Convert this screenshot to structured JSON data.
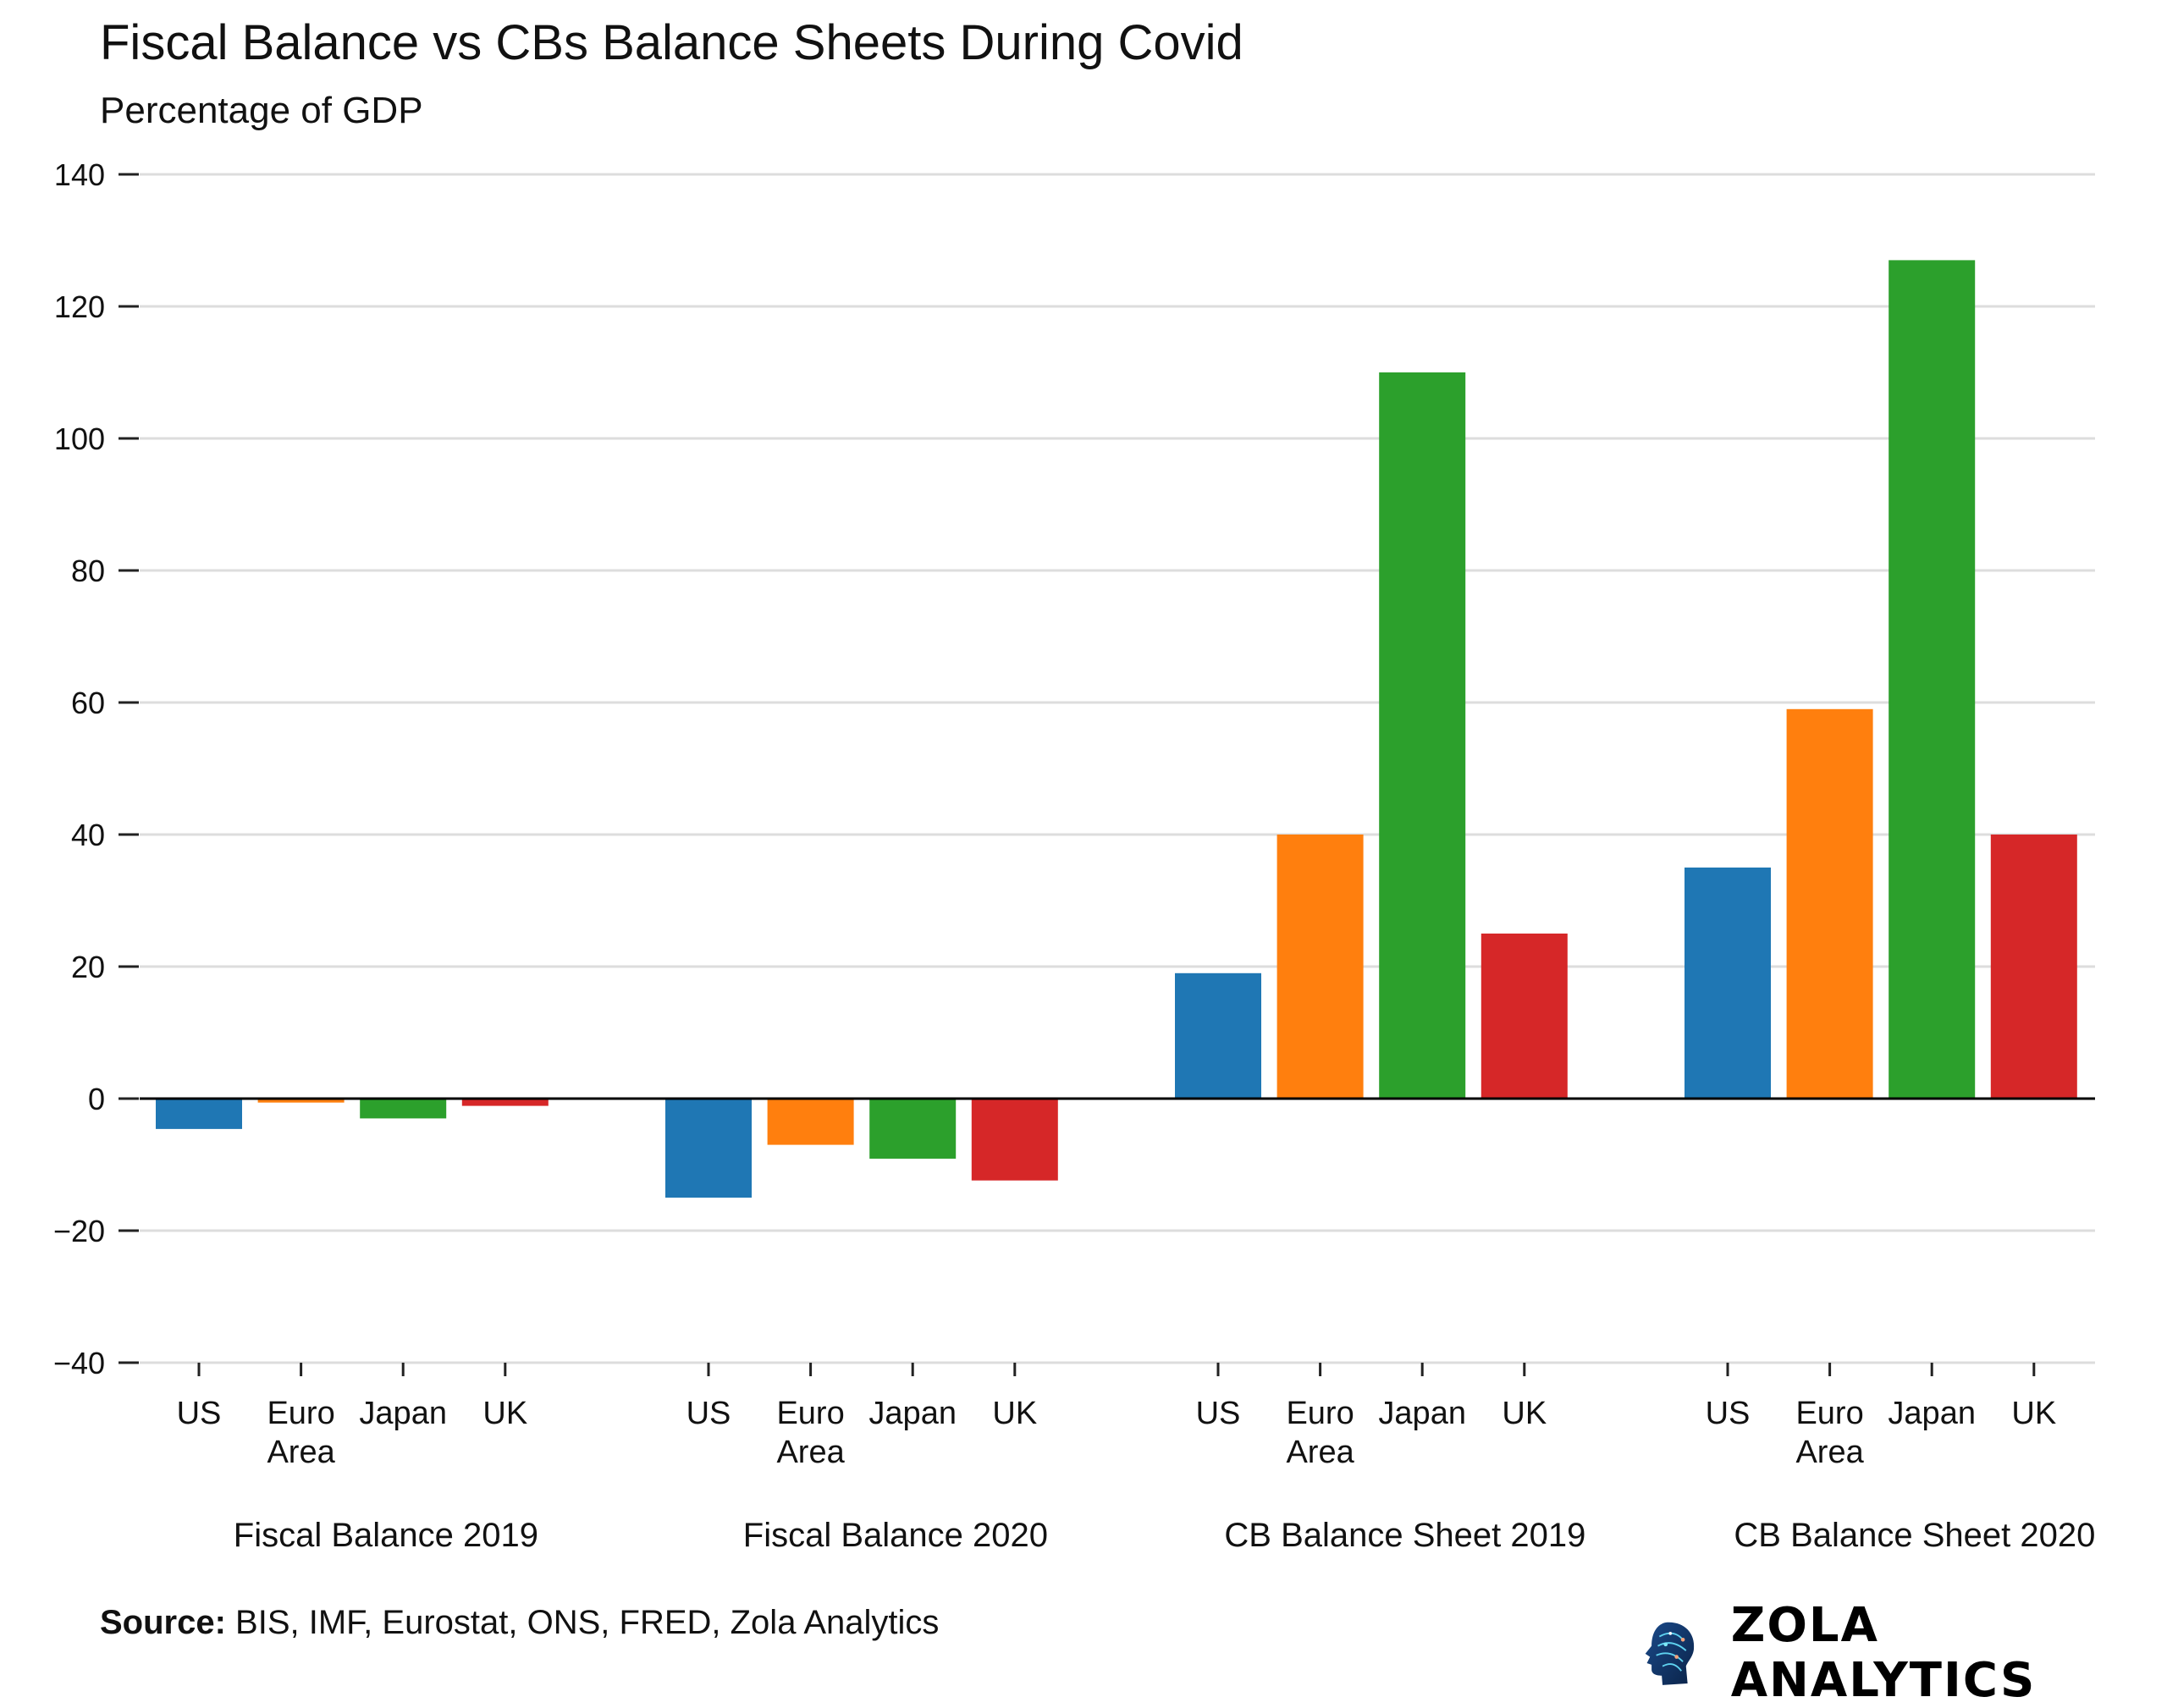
{
  "chart_data": {
    "type": "bar",
    "title": "Fiscal Balance vs CBs Balance Sheets During Covid",
    "subtitle": "Percentage of GDP",
    "ylabel": "",
    "xlabel": "",
    "ylim": [
      -40,
      140
    ],
    "yticks": [
      140,
      120,
      100,
      80,
      60,
      40,
      20,
      0,
      -20,
      -40
    ],
    "ytick_labels": [
      "140",
      "120",
      "100",
      "80",
      "60",
      "40",
      "20",
      "0",
      "−20",
      "−40"
    ],
    "grid": true,
    "categories": [
      "US",
      "Euro Area",
      "Japan",
      "UK"
    ],
    "category_colors": [
      "#1f77b4",
      "#ff7f0e",
      "#2ca02c",
      "#d62728"
    ],
    "groups": [
      {
        "label": "Fiscal Balance 2019",
        "values": [
          -4.6,
          -0.6,
          -3.0,
          -1.1
        ]
      },
      {
        "label": "Fiscal Balance 2020",
        "values": [
          -15,
          -7,
          -9.1,
          -12.4
        ]
      },
      {
        "label": "CB Balance Sheet 2019",
        "values": [
          19,
          40,
          110,
          25
        ]
      },
      {
        "label": "CB Balance Sheet 2020",
        "values": [
          35,
          59,
          127,
          40
        ]
      }
    ]
  },
  "footer": {
    "source_label": "Source:",
    "source_text": " BIS, IMF, Eurostat, ONS, FRED, Zola Analytics",
    "logo_text": "ZOLA ANALYTICS",
    "logo_icon": "circuit-head-icon"
  }
}
